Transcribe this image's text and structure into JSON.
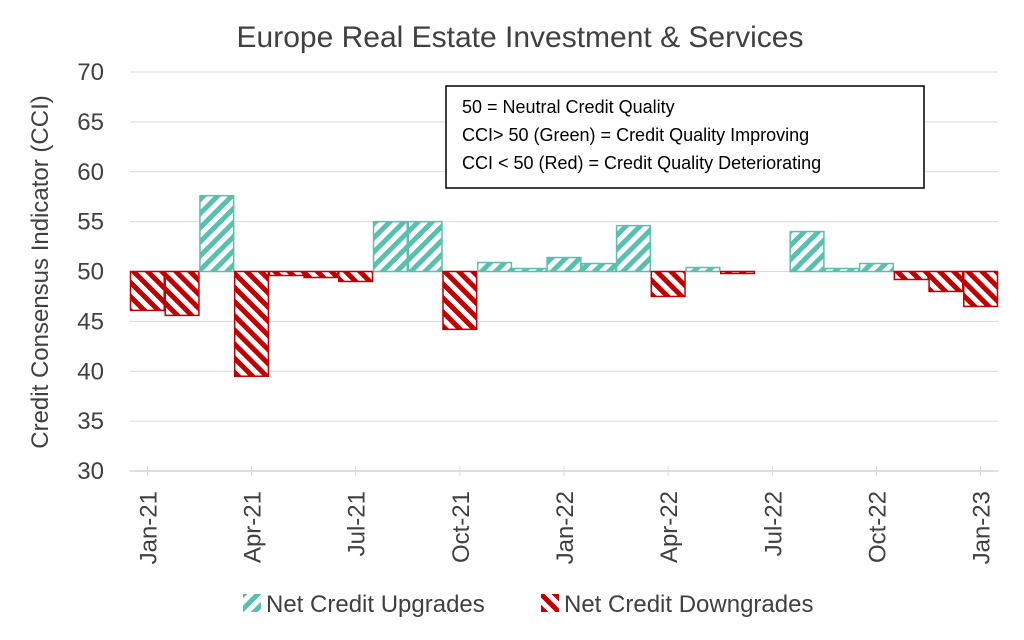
{
  "chart_data": {
    "type": "bar",
    "title": "Europe Real Estate Investment & Services",
    "ylabel": "Credit Consensus Indicator (CCI)",
    "xlabel": "",
    "ylim": [
      30,
      70
    ],
    "yticks": [
      30,
      35,
      40,
      45,
      50,
      55,
      60,
      65,
      70
    ],
    "baseline": 50,
    "grid": true,
    "months": [
      "Jan-21",
      "Feb-21",
      "Mar-21",
      "Apr-21",
      "May-21",
      "Jun-21",
      "Jul-21",
      "Aug-21",
      "Sep-21",
      "Oct-21",
      "Nov-21",
      "Dec-21",
      "Jan-22",
      "Feb-22",
      "Mar-22",
      "Apr-22",
      "May-22",
      "Jun-22",
      "Jul-22",
      "Aug-22",
      "Sep-22",
      "Oct-22",
      "Nov-22",
      "Dec-22",
      "Jan-23"
    ],
    "values": [
      46.1,
      45.6,
      57.6,
      39.5,
      49.6,
      49.4,
      49.0,
      55.0,
      55.0,
      44.2,
      50.9,
      50.3,
      51.4,
      50.8,
      54.6,
      47.5,
      50.4,
      49.8,
      null,
      54.0,
      50.3,
      50.8,
      49.2,
      48.0,
      46.5
    ],
    "tick_labels": [
      "Jan-21",
      "Apr-21",
      "Jul-21",
      "Oct-21",
      "Jan-22",
      "Apr-22",
      "Jul-22",
      "Oct-22",
      "Jan-23"
    ],
    "series": [
      {
        "name": "Net Credit Upgrades",
        "rule": "value >= 50",
        "color": "#5bbfb0"
      },
      {
        "name": "Net Credit Downgrades",
        "rule": "value < 50",
        "color": "#c00000"
      }
    ],
    "annotation": [
      "50 = Neutral Credit Quality",
      "CCI> 50 (Green) = Credit Quality Improving",
      "CCI < 50 (Red) = Credit Quality Deteriorating"
    ],
    "legend_position": "bottom"
  }
}
